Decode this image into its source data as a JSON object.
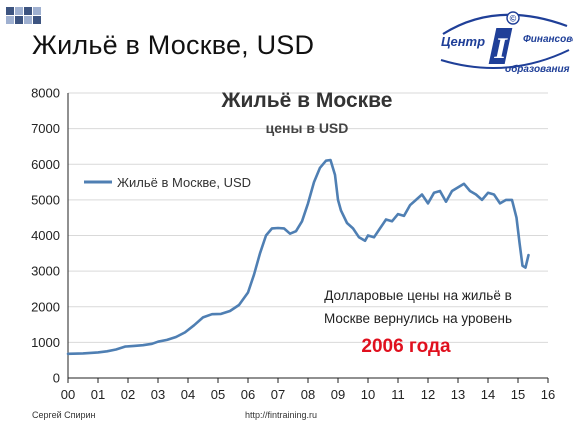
{
  "slide": {
    "title": "Жильё в Москве, USD",
    "footer_author": "Сергей Спирин",
    "footer_url": "http://fintraining.ru"
  },
  "logo": {
    "text_line1": "Центр",
    "text_line2": "Финансового",
    "text_line3": "образования",
    "letter": "I",
    "mark": "©",
    "colors": {
      "primary": "#1f3f98",
      "accent": "#c8102e"
    }
  },
  "chart_data": {
    "type": "line",
    "title": "Жильё в Москве",
    "subtitle": "цены в USD",
    "xlabel": "",
    "ylabel": "",
    "x_ticks": [
      "00",
      "01",
      "02",
      "03",
      "04",
      "05",
      "06",
      "07",
      "08",
      "09",
      "10",
      "11",
      "12",
      "13",
      "14",
      "15",
      "16"
    ],
    "y_ticks": [
      0,
      1000,
      2000,
      3000,
      4000,
      5000,
      6000,
      7000,
      8000
    ],
    "xlim": [
      0,
      16
    ],
    "ylim": [
      0,
      8000
    ],
    "grid": "horizontal",
    "legend_position": "top-left",
    "series": [
      {
        "name": "Жильё в Москве, USD",
        "color": "#4f7fb3",
        "x": [
          0.0,
          0.5,
          1.0,
          1.3,
          1.6,
          1.9,
          2.2,
          2.5,
          2.8,
          3.0,
          3.3,
          3.6,
          3.9,
          4.2,
          4.5,
          4.8,
          5.1,
          5.4,
          5.7,
          6.0,
          6.2,
          6.4,
          6.6,
          6.8,
          7.0,
          7.2,
          7.4,
          7.6,
          7.8,
          8.0,
          8.2,
          8.4,
          8.6,
          8.75,
          8.9,
          9.0,
          9.1,
          9.3,
          9.5,
          9.7,
          9.9,
          10.0,
          10.2,
          10.4,
          10.6,
          10.8,
          11.0,
          11.2,
          11.4,
          11.6,
          11.8,
          12.0,
          12.2,
          12.4,
          12.6,
          12.8,
          13.0,
          13.2,
          13.4,
          13.6,
          13.8,
          14.0,
          14.2,
          14.4,
          14.6,
          14.8,
          14.95,
          15.05,
          15.15,
          15.25,
          15.35
        ],
        "values": [
          680,
          690,
          720,
          750,
          800,
          880,
          900,
          920,
          960,
          1020,
          1070,
          1150,
          1280,
          1480,
          1700,
          1790,
          1800,
          1880,
          2050,
          2400,
          2900,
          3500,
          4000,
          4200,
          4210,
          4200,
          4050,
          4120,
          4400,
          4900,
          5500,
          5900,
          6100,
          6120,
          5700,
          5000,
          4700,
          4350,
          4200,
          3950,
          3850,
          4000,
          3950,
          4200,
          4450,
          4400,
          4600,
          4550,
          4850,
          5000,
          5150,
          4900,
          5200,
          5250,
          4950,
          5250,
          5350,
          5450,
          5250,
          5150,
          5000,
          5200,
          5150,
          4900,
          5000,
          5000,
          4500,
          3800,
          3150,
          3100,
          3450
        ]
      }
    ],
    "annotation": {
      "line1": "Долларовые цены на жильё в",
      "line2": "Москве вернулись на уровень",
      "highlight": "2006 года",
      "highlight_color": "#e0101e"
    }
  }
}
